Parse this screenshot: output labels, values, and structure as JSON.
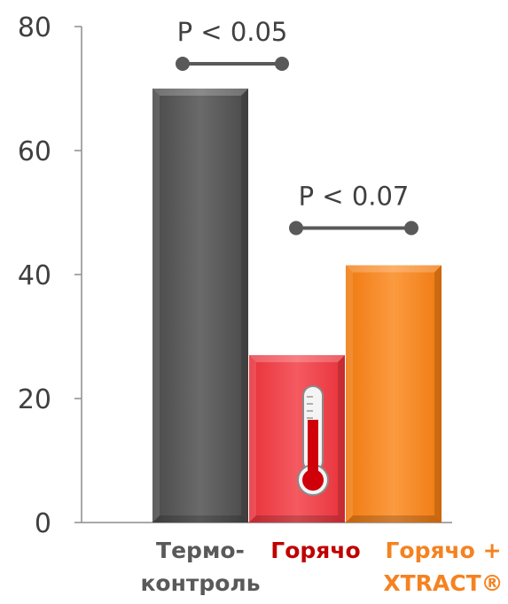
{
  "chart_data": {
    "type": "bar",
    "ylim": [
      0,
      80
    ],
    "yticks": [
      {
        "value": 0,
        "label": "0"
      },
      {
        "value": 20,
        "label": "20"
      },
      {
        "value": 40,
        "label": "40"
      },
      {
        "value": 60,
        "label": "60"
      },
      {
        "value": 80,
        "label": "80"
      }
    ],
    "categories": [
      {
        "lines": [
          "Термо-",
          "контроль"
        ],
        "color": "#595959"
      },
      {
        "lines": [
          "Горячо"
        ],
        "color": "#c00000"
      },
      {
        "lines": [
          "Горячо +",
          "XTRACT®"
        ],
        "color": "#f58220"
      }
    ],
    "values": [
      70,
      27,
      41.5
    ],
    "bar_colors": [
      "#5a5a5a",
      "#f2434b",
      "#f58220"
    ],
    "thermometer_icon": "thermometer-icon",
    "significance": [
      {
        "label": "P < 0.05",
        "from": 0,
        "to": 1,
        "level": 74
      },
      {
        "label": "P < 0.07",
        "from": 1,
        "to": 2,
        "level": 47.5
      }
    ]
  }
}
